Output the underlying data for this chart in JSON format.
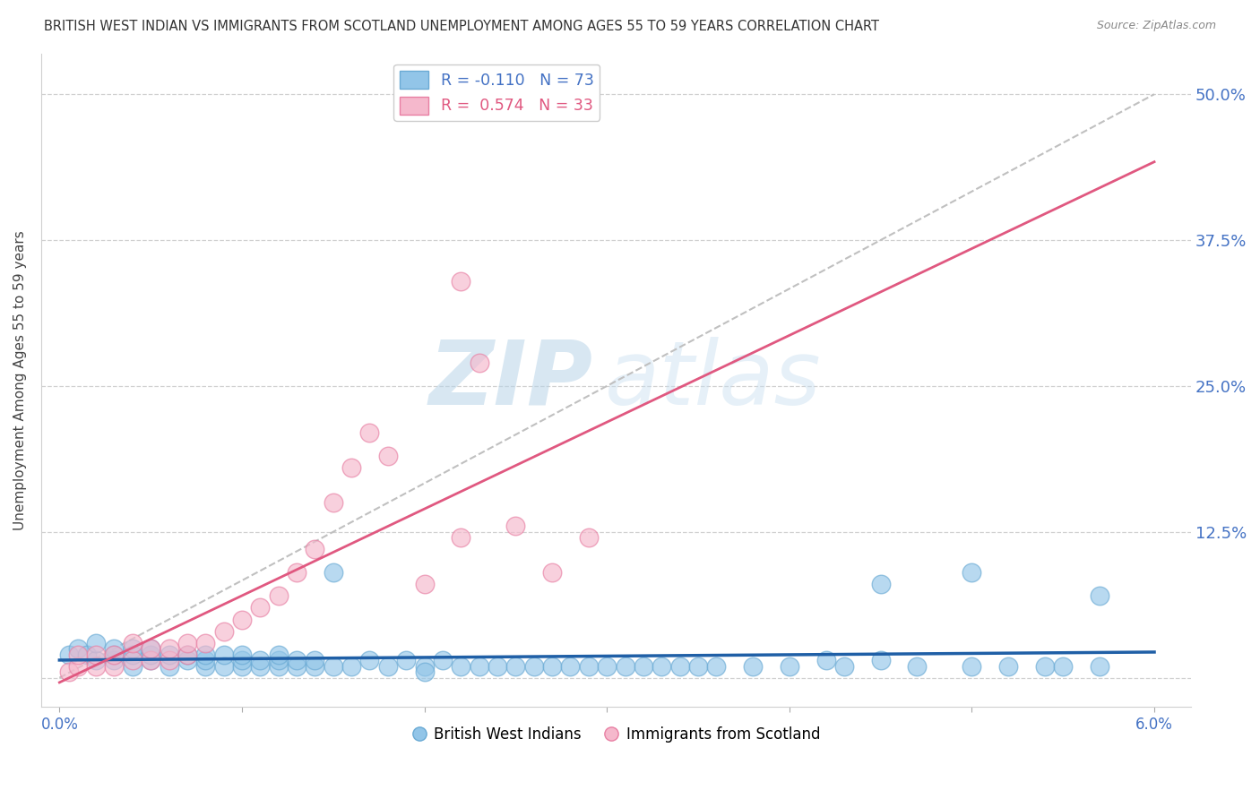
{
  "title": "BRITISH WEST INDIAN VS IMMIGRANTS FROM SCOTLAND UNEMPLOYMENT AMONG AGES 55 TO 59 YEARS CORRELATION CHART",
  "source": "Source: ZipAtlas.com",
  "ylabel": "Unemployment Among Ages 55 to 59 years",
  "xlim": [
    0.0,
    0.06
  ],
  "ylim": [
    0.0,
    0.52
  ],
  "ytick_vals": [
    0.0,
    0.125,
    0.25,
    0.375,
    0.5
  ],
  "ytick_labels_right": [
    "",
    "12.5%",
    "25.0%",
    "37.5%",
    "50.0%"
  ],
  "xtick_vals": [
    0.0,
    0.01,
    0.02,
    0.03,
    0.04,
    0.05,
    0.06
  ],
  "xtick_labels": [
    "0.0%",
    "",
    "",
    "",
    "",
    "",
    "6.0%"
  ],
  "blue_color": "#92c5e8",
  "blue_edge_color": "#6aaad4",
  "pink_color": "#f5b8cc",
  "pink_edge_color": "#e87fa3",
  "blue_line_color": "#1f5fa6",
  "pink_line_color": "#e05880",
  "diag_color": "#c0c0c0",
  "blue_R": -0.11,
  "blue_N": 73,
  "pink_R": 0.574,
  "pink_N": 33,
  "watermark_zip": "ZIP",
  "watermark_atlas": "atlas",
  "legend_label_blue": "British West Indians",
  "legend_label_pink": "Immigrants from Scotland",
  "blue_x": [
    0.0005,
    0.001,
    0.0015,
    0.002,
    0.002,
    0.003,
    0.003,
    0.003,
    0.004,
    0.004,
    0.004,
    0.005,
    0.005,
    0.005,
    0.006,
    0.006,
    0.007,
    0.007,
    0.008,
    0.008,
    0.008,
    0.009,
    0.009,
    0.01,
    0.01,
    0.01,
    0.011,
    0.011,
    0.012,
    0.012,
    0.013,
    0.013,
    0.014,
    0.014,
    0.015,
    0.015,
    0.016,
    0.017,
    0.018,
    0.019,
    0.02,
    0.021,
    0.022,
    0.023,
    0.024,
    0.025,
    0.026,
    0.027,
    0.028,
    0.029,
    0.03,
    0.031,
    0.032,
    0.033,
    0.034,
    0.035,
    0.036,
    0.038,
    0.04,
    0.042,
    0.043,
    0.045,
    0.047,
    0.05,
    0.052,
    0.054,
    0.055,
    0.057,
    0.012,
    0.02,
    0.045,
    0.05,
    0.057
  ],
  "blue_y": [
    0.02,
    0.025,
    0.02,
    0.015,
    0.03,
    0.015,
    0.02,
    0.025,
    0.01,
    0.02,
    0.025,
    0.015,
    0.02,
    0.025,
    0.01,
    0.02,
    0.015,
    0.02,
    0.01,
    0.015,
    0.02,
    0.01,
    0.02,
    0.01,
    0.015,
    0.02,
    0.01,
    0.015,
    0.01,
    0.015,
    0.01,
    0.015,
    0.01,
    0.015,
    0.01,
    0.09,
    0.01,
    0.015,
    0.01,
    0.015,
    0.01,
    0.015,
    0.01,
    0.01,
    0.01,
    0.01,
    0.01,
    0.01,
    0.01,
    0.01,
    0.01,
    0.01,
    0.01,
    0.01,
    0.01,
    0.01,
    0.01,
    0.01,
    0.01,
    0.015,
    0.01,
    0.015,
    0.01,
    0.01,
    0.01,
    0.01,
    0.01,
    0.01,
    0.02,
    0.005,
    0.08,
    0.09,
    0.07
  ],
  "pink_x": [
    0.0005,
    0.001,
    0.001,
    0.002,
    0.002,
    0.003,
    0.003,
    0.004,
    0.004,
    0.005,
    0.005,
    0.006,
    0.006,
    0.007,
    0.007,
    0.008,
    0.009,
    0.01,
    0.011,
    0.012,
    0.013,
    0.014,
    0.015,
    0.016,
    0.017,
    0.018,
    0.02,
    0.022,
    0.023,
    0.025,
    0.027,
    0.029,
    0.022
  ],
  "pink_y": [
    0.005,
    0.01,
    0.02,
    0.01,
    0.02,
    0.01,
    0.02,
    0.015,
    0.03,
    0.015,
    0.025,
    0.015,
    0.025,
    0.02,
    0.03,
    0.03,
    0.04,
    0.05,
    0.06,
    0.07,
    0.09,
    0.11,
    0.15,
    0.18,
    0.21,
    0.19,
    0.08,
    0.12,
    0.27,
    0.13,
    0.09,
    0.12,
    0.34
  ]
}
